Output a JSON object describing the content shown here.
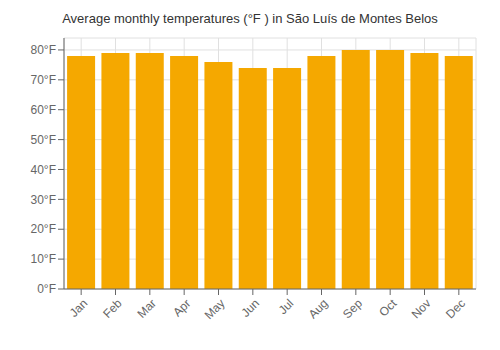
{
  "chart_data": {
    "type": "bar",
    "title": "Average monthly temperatures (°F ) in São Luís de Montes Belos",
    "categories": [
      "Jan",
      "Feb",
      "Mar",
      "Apr",
      "May",
      "Jun",
      "Jul",
      "Aug",
      "Sep",
      "Oct",
      "Nov",
      "Dec"
    ],
    "values": [
      78,
      79,
      79,
      78,
      76,
      74,
      74,
      78,
      80,
      80,
      79,
      78
    ],
    "color": "#F5A800",
    "ylim": [
      0,
      84
    ],
    "yticks": [
      {
        "value": 0,
        "label": "0°F"
      },
      {
        "value": 10,
        "label": "10°F"
      },
      {
        "value": 20,
        "label": "20°F"
      },
      {
        "value": 30,
        "label": "30°F"
      },
      {
        "value": 40,
        "label": "40°F"
      },
      {
        "value": 50,
        "label": "50°F"
      },
      {
        "value": 60,
        "label": "60°F"
      },
      {
        "value": 70,
        "label": "70°F"
      },
      {
        "value": 80,
        "label": "80°F"
      }
    ],
    "grid": true
  }
}
